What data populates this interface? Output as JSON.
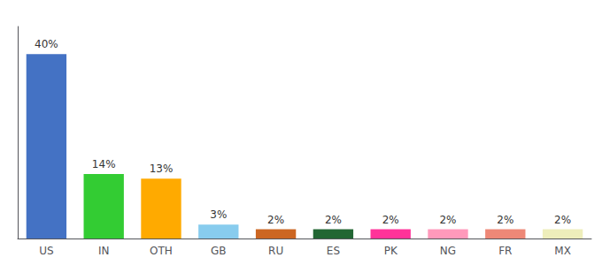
{
  "chart_data": {
    "type": "bar",
    "categories": [
      "US",
      "IN",
      "OTH",
      "GB",
      "RU",
      "ES",
      "PK",
      "NG",
      "FR",
      "MX"
    ],
    "values": [
      40,
      14,
      13,
      3,
      2,
      2,
      2,
      2,
      2,
      2
    ],
    "value_labels": [
      "40%",
      "14%",
      "13%",
      "3%",
      "2%",
      "2%",
      "2%",
      "2%",
      "2%",
      "2%"
    ],
    "colors": [
      "#4472c4",
      "#33cc33",
      "#ffaa00",
      "#88ccee",
      "#cc6622",
      "#226633",
      "#ff3399",
      "#ff99bb",
      "#ee8877",
      "#eeeebb"
    ],
    "ylim": [
      0,
      46
    ],
    "data_labels": true,
    "tick_labels": "x",
    "grid": false
  }
}
